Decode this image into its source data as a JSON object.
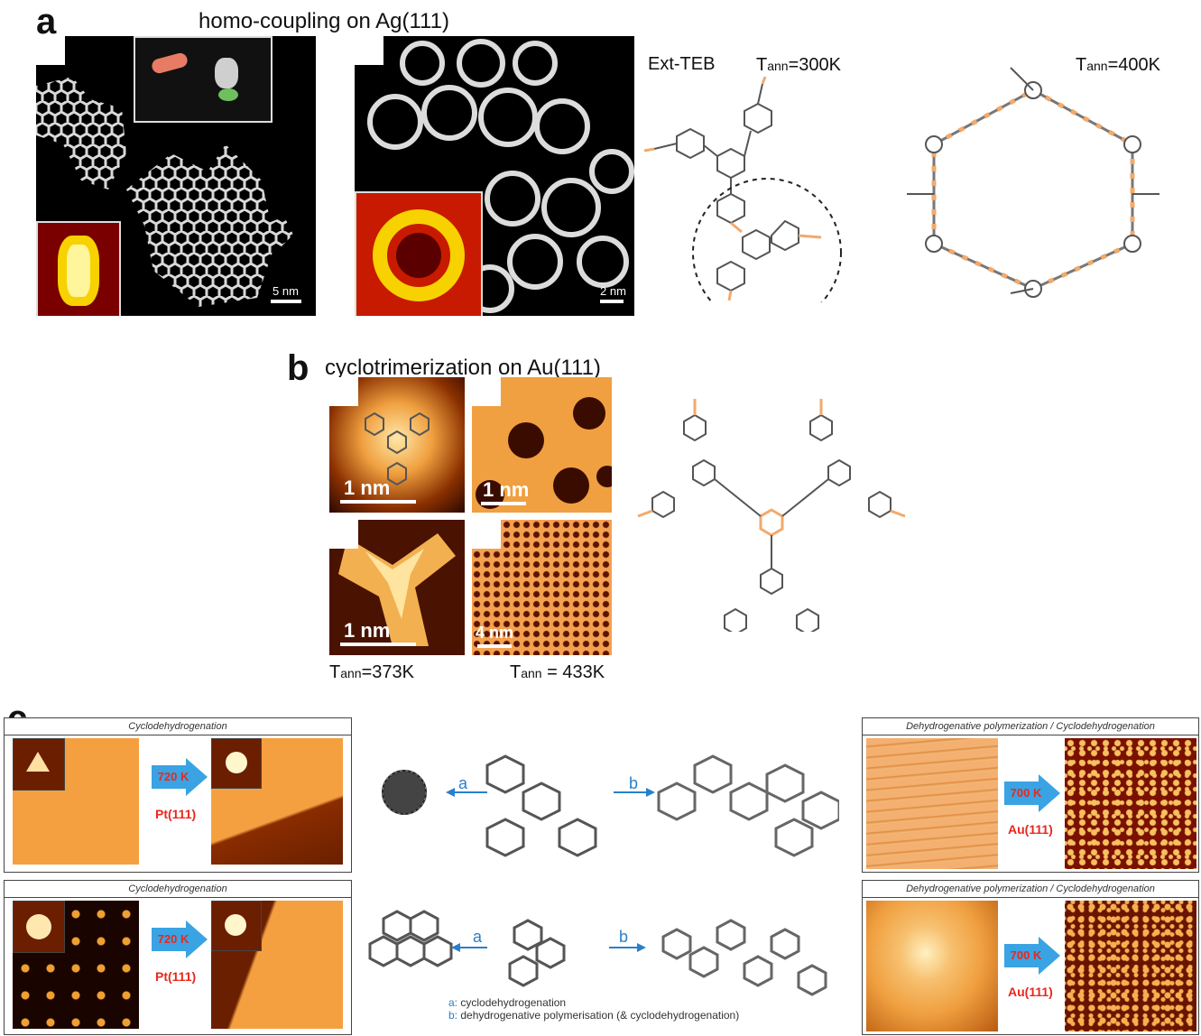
{
  "panel_a": {
    "letter": "a",
    "title": "homo-coupling on Ag(111)",
    "scale_left": "5 nm",
    "scale_right": "2 nm",
    "molecule_label": "Ext-TEB",
    "tann_300_base": "T",
    "tann_300_sub": "ann",
    "tann_300_val": "=300K",
    "tann_400_base": "T",
    "tann_400_sub": "ann",
    "tann_400_val": "=400K"
  },
  "panel_b": {
    "letter": "b",
    "title": "cyclotrimerization on Au(111)",
    "scale_1": "1 nm",
    "scale_2": "1 nm",
    "scale_3": "1 nm",
    "scale_4": "4 nm",
    "tann_373_base": "T",
    "tann_373_sub": "ann",
    "tann_373_val": "=373K",
    "tann_433_base": "T",
    "tann_433_sub": "ann",
    "tann_433_val": " = 433K"
  },
  "panel_c": {
    "letter": "c",
    "left_top_header": "Cyclodehydrogenation",
    "left_bottom_header": "Cyclodehydrogenation",
    "right_top_header": "Dehydrogenative polymerization / Cyclodehydrogenation",
    "right_bottom_header": "Dehydrogenative polymerization / Cyclodehydrogenation",
    "left_temp": "720 K",
    "left_surface": "Pt(111)",
    "right_temp": "700 K",
    "right_surface": "Au(111)",
    "route_a": "a",
    "route_b": "b",
    "legend_a_key": "a:",
    "legend_a_text": "cyclodehydrogenation",
    "legend_b_key": "b:",
    "legend_b_text": "dehydrogenative polymerisation (& cyclodehydrogenation)"
  },
  "colors": {
    "accent_orange": "#f3a96b",
    "arrow_blue": "#3aa3e3",
    "temp_red": "#e8281e",
    "route_blue": "#2a7fc9"
  }
}
